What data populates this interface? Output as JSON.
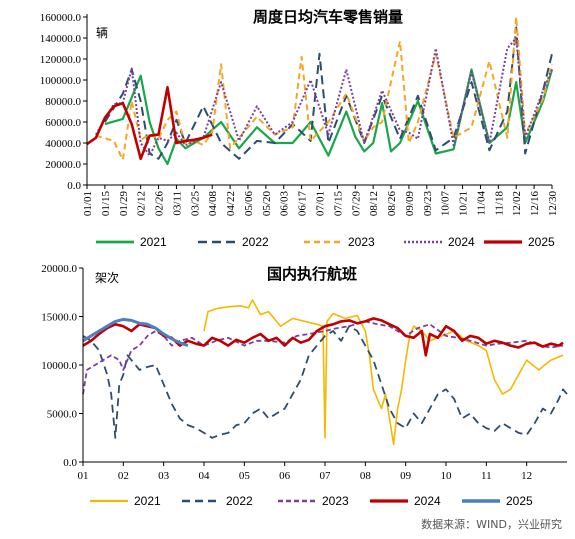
{
  "source": "数据来源：WIND，兴业研究",
  "chart_data": [
    {
      "type": "line",
      "title": "周度日均汽车零售销量",
      "unit": "辆",
      "ylim": [
        0,
        160000
      ],
      "yticks": [
        "160000.0",
        "140000.0",
        "120000.0",
        "100000.0",
        "80000.0",
        "60000.0",
        "40000.0",
        "20000.0",
        "0.0"
      ],
      "xticks": [
        "01/01",
        "01/15",
        "01/29",
        "02/12",
        "02/26",
        "03/11",
        "03/25",
        "04/08",
        "04/22",
        "05/06",
        "05/20",
        "06/03",
        "06/17",
        "07/01",
        "07/15",
        "07/29",
        "08/12",
        "08/26",
        "09/09",
        "09/23",
        "10/07",
        "10/21",
        "11/04",
        "11/18",
        "12/02",
        "12/16",
        "12/30"
      ],
      "x_week_start": 1,
      "x_week_end": 53,
      "grid": false,
      "legend_position": "bottom",
      "series": [
        {
          "name": "2021",
          "color": "#1aa64a",
          "dash": "",
          "width": 2.2,
          "x": [
            3,
            5,
            7,
            8,
            9,
            10,
            11,
            12,
            14,
            16,
            18,
            20,
            22,
            24,
            26,
            28,
            30,
            31,
            32,
            33,
            34,
            35,
            36,
            38,
            40,
            42,
            44,
            46,
            48,
            49,
            50,
            52,
            53
          ],
          "y": [
            58000,
            63000,
            104000,
            60000,
            35000,
            20000,
            44000,
            35000,
            45000,
            60000,
            35000,
            55000,
            40000,
            40000,
            60000,
            28000,
            70000,
            46000,
            32000,
            40000,
            78000,
            32000,
            40000,
            80000,
            30000,
            34000,
            110000,
            40000,
            55000,
            98000,
            40000,
            80000,
            110000
          ]
        },
        {
          "name": "2022",
          "color": "#2e4d6e",
          "dash": "9,5",
          "width": 2,
          "x": [
            3,
            5,
            6,
            7,
            8,
            9,
            10,
            11,
            12,
            14,
            16,
            18,
            20,
            22,
            24,
            26,
            27,
            28,
            30,
            32,
            34,
            36,
            38,
            40,
            42,
            44,
            46,
            48,
            49,
            50,
            52,
            53
          ],
          "y": [
            60000,
            87000,
            110000,
            80000,
            30000,
            25000,
            40000,
            62000,
            40000,
            75000,
            40000,
            25000,
            42000,
            40000,
            58000,
            42000,
            125000,
            40000,
            85000,
            40000,
            85000,
            44000,
            85000,
            33000,
            45000,
            98000,
            33000,
            70000,
            150000,
            30000,
            90000,
            125000
          ]
        },
        {
          "name": "2023",
          "color": "#f5a623",
          "dash": "6,4",
          "width": 2,
          "x": [
            2,
            4,
            5,
            6,
            7,
            8,
            9,
            10,
            11,
            12,
            13,
            14,
            15,
            16,
            17,
            18,
            20,
            22,
            24,
            25,
            26,
            28,
            30,
            32,
            33,
            34,
            36,
            37,
            38,
            40,
            42,
            44,
            46,
            48,
            49,
            50,
            52,
            53
          ],
          "y": [
            47000,
            42000,
            24000,
            80000,
            43000,
            48000,
            44000,
            62000,
            70000,
            38000,
            42000,
            38000,
            50000,
            115000,
            35000,
            45000,
            65000,
            48000,
            55000,
            122000,
            42000,
            60000,
            87000,
            42000,
            55000,
            60000,
            137000,
            40000,
            60000,
            125000,
            45000,
            55000,
            118000,
            45000,
            160000,
            48000,
            82000,
            115000
          ]
        },
        {
          "name": "2024",
          "color": "#7b3fa0",
          "dash": "2,2",
          "width": 2,
          "x": [
            2,
            4,
            5,
            6,
            7,
            8,
            9,
            10,
            11,
            12,
            14,
            16,
            18,
            20,
            22,
            24,
            26,
            28,
            30,
            32,
            34,
            36,
            37,
            38,
            40,
            42,
            44,
            46,
            48,
            49,
            50,
            52,
            53
          ],
          "y": [
            48000,
            77000,
            78000,
            111000,
            40000,
            28000,
            45000,
            42000,
            50000,
            38000,
            45000,
            98000,
            42000,
            75000,
            48000,
            60000,
            100000,
            48000,
            110000,
            40000,
            90000,
            52000,
            50000,
            44000,
            130000,
            38000,
            108000,
            40000,
            130000,
            140000,
            45000,
            90000,
            110000
          ]
        },
        {
          "name": "2025",
          "color": "#c00000",
          "dash": "",
          "width": 2.6,
          "x": [
            1,
            2,
            3,
            4,
            5,
            6,
            7,
            8,
            9,
            10,
            11,
            12,
            13,
            14,
            15
          ],
          "y": [
            39000,
            45000,
            64000,
            75000,
            78000,
            58000,
            25000,
            47000,
            48000,
            93000,
            40000,
            42000,
            43000,
            45000,
            48000
          ]
        }
      ]
    },
    {
      "type": "line",
      "title": "国内执行航班",
      "unit": "架次",
      "ylim": [
        0,
        20000
      ],
      "yticks": [
        "20000.0",
        "15000.0",
        "10000.0",
        "5000.0",
        "0.0"
      ],
      "xticks": [
        "01",
        "02",
        "03",
        "04",
        "05",
        "06",
        "07",
        "08",
        "09",
        "10",
        "11",
        "12"
      ],
      "x_month_start": 1,
      "x_month_end": 13,
      "grid": false,
      "legend_position": "bottom",
      "series": [
        {
          "name": "2021",
          "color": "#f5b800",
          "dash": "",
          "width": 1.6,
          "x": [
            4.0,
            4.1,
            4.3,
            4.6,
            4.9,
            5.1,
            5.2,
            5.4,
            5.6,
            5.9,
            6.2,
            6.5,
            6.8,
            6.95,
            7.0,
            7.05,
            7.2,
            7.5,
            7.8,
            8.0,
            8.1,
            8.2,
            8.3,
            8.4,
            8.5,
            8.6,
            8.7,
            8.8,
            8.9,
            9.0,
            9.1,
            9.2,
            9.4,
            9.6,
            9.9,
            10.2,
            10.5,
            10.8,
            11.0,
            11.2,
            11.4,
            11.6,
            11.8,
            12.0,
            12.3,
            12.6,
            12.9
          ],
          "y": [
            13500,
            15500,
            15800,
            16000,
            16100,
            15900,
            16700,
            15200,
            15500,
            14000,
            14800,
            14500,
            14200,
            14000,
            2500,
            14500,
            15300,
            14800,
            15100,
            13500,
            11000,
            7500,
            6500,
            5500,
            7000,
            4500,
            1800,
            5500,
            7500,
            10500,
            13000,
            14000,
            13500,
            12500,
            13000,
            13500,
            12500,
            12000,
            11500,
            8500,
            7000,
            7500,
            9000,
            10500,
            9500,
            10500,
            11000
          ]
        },
        {
          "name": "2022",
          "color": "#2e4d6e",
          "dash": "8,5",
          "width": 1.8,
          "x": [
            1.0,
            1.2,
            1.4,
            1.6,
            1.7,
            1.8,
            1.9,
            2.0,
            2.1,
            2.2,
            2.4,
            2.6,
            2.8,
            3.0,
            3.2,
            3.4,
            3.6,
            3.8,
            4.0,
            4.2,
            4.4,
            4.6,
            4.8,
            5.0,
            5.2,
            5.4,
            5.6,
            5.8,
            6.0,
            6.2,
            6.4,
            6.6,
            6.8,
            7.0,
            7.2,
            7.4,
            7.6,
            7.8,
            8.0,
            8.2,
            8.4,
            8.6,
            8.8,
            9.0,
            9.2,
            9.4,
            9.6,
            9.8,
            10.0,
            10.2,
            10.4,
            10.6,
            10.8,
            11.0,
            11.2,
            11.4,
            11.6,
            11.8,
            12.0,
            12.2,
            12.4,
            12.6,
            12.8,
            12.9,
            13.0
          ],
          "y": [
            13000,
            12500,
            11500,
            9000,
            7000,
            2500,
            8000,
            9000,
            11000,
            10500,
            9500,
            9800,
            10000,
            8000,
            6000,
            4500,
            3800,
            3500,
            3000,
            2500,
            2800,
            3000,
            3800,
            4000,
            5000,
            5500,
            4500,
            5000,
            5500,
            7000,
            8500,
            11000,
            12000,
            13000,
            13500,
            12500,
            14000,
            13500,
            12000,
            10500,
            8000,
            5500,
            4000,
            3500,
            5000,
            4000,
            5500,
            7000,
            7500,
            6500,
            4500,
            5000,
            4000,
            3500,
            3200,
            4000,
            3500,
            3000,
            2800,
            4000,
            5500,
            5000,
            6500,
            7500,
            7000
          ]
        },
        {
          "name": "2023",
          "color": "#7b3fa0",
          "dash": "5,3",
          "width": 1.8,
          "x": [
            1.0,
            1.1,
            1.3,
            1.5,
            1.7,
            1.9,
            2.0,
            2.2,
            2.4,
            2.6,
            2.8,
            3.0,
            3.2,
            3.4,
            3.7,
            4.0,
            4.3,
            4.6,
            5.0,
            5.3,
            5.6,
            6.0,
            6.3,
            6.6,
            7.0,
            7.3,
            7.6,
            8.0,
            8.3,
            8.6,
            9.0,
            9.3,
            9.6,
            10.0,
            10.3,
            10.6,
            11.0,
            11.3,
            11.6,
            12.0,
            12.3,
            12.6,
            12.9
          ],
          "y": [
            7000,
            9500,
            10000,
            10500,
            11000,
            10500,
            9500,
            11500,
            12000,
            13000,
            13500,
            13000,
            12000,
            12500,
            12800,
            12000,
            12500,
            12800,
            12000,
            12500,
            12500,
            12300,
            13000,
            13200,
            13500,
            13800,
            14000,
            14500,
            14200,
            14000,
            13000,
            13800,
            14200,
            13000,
            12800,
            12500,
            12000,
            12200,
            12300,
            12500,
            12000,
            11800,
            12000
          ]
        },
        {
          "name": "2024",
          "color": "#c00000",
          "dash": "",
          "width": 2.6,
          "x": [
            1.0,
            1.2,
            1.4,
            1.6,
            1.8,
            2.0,
            2.2,
            2.4,
            2.6,
            2.8,
            3.0,
            3.2,
            3.4,
            3.6,
            3.8,
            4.0,
            4.2,
            4.4,
            4.6,
            4.8,
            5.0,
            5.2,
            5.4,
            5.6,
            5.8,
            6.0,
            6.2,
            6.4,
            6.6,
            6.8,
            7.0,
            7.2,
            7.4,
            7.6,
            7.8,
            8.0,
            8.2,
            8.4,
            8.6,
            8.8,
            9.0,
            9.2,
            9.4,
            9.5,
            9.6,
            9.8,
            10.0,
            10.2,
            10.4,
            10.6,
            10.8,
            11.0,
            11.2,
            11.4,
            11.6,
            11.8,
            12.0,
            12.2,
            12.4,
            12.6,
            12.8,
            12.9
          ],
          "y": [
            12000,
            12500,
            13200,
            13800,
            14200,
            14000,
            13500,
            14200,
            14000,
            13800,
            13000,
            12800,
            12000,
            12500,
            12200,
            12000,
            12800,
            12500,
            12000,
            12600,
            12300,
            12800,
            13200,
            12500,
            12800,
            12000,
            12800,
            12300,
            12600,
            13500,
            14000,
            14200,
            14500,
            14600,
            14300,
            14500,
            14800,
            14600,
            14200,
            13800,
            13000,
            12800,
            13500,
            11000,
            13200,
            12800,
            14000,
            13500,
            12500,
            13000,
            12800,
            12200,
            12500,
            12300,
            12000,
            11800,
            12200,
            12300,
            11900,
            12200,
            12000,
            12300
          ]
        },
        {
          "name": "2025",
          "color": "#4a7fc1",
          "dash": "",
          "width": 3,
          "x": [
            1.0,
            1.2,
            1.4,
            1.6,
            1.8,
            2.0,
            2.2,
            2.4,
            2.6,
            2.8,
            3.0,
            3.2,
            3.4,
            3.6
          ],
          "y": [
            12500,
            13000,
            13500,
            14000,
            14500,
            14700,
            14600,
            14300,
            14200,
            13800,
            13200,
            12700,
            12300,
            12000
          ]
        }
      ]
    }
  ]
}
